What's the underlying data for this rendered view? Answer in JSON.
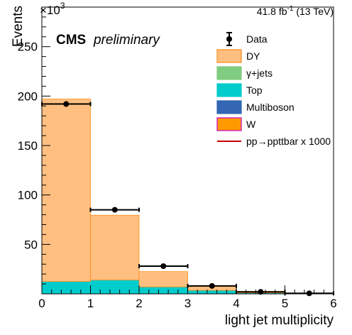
{
  "chart_data": {
    "type": "bar",
    "stacked": true,
    "title": "",
    "xlabel": "light jet multiplicity",
    "ylabel": "Events",
    "y_exponent_label": "×10",
    "y_exponent_power": "3",
    "luminosity_label": "41.8 fb",
    "luminosity_exp": "-1",
    "energy_label": " (13 TeV)",
    "cms_label": "CMS",
    "preliminary_label": "preliminary",
    "bin_edges": [
      0,
      1,
      2,
      3,
      4,
      5,
      6
    ],
    "x_ticks": [
      "0",
      "1",
      "2",
      "3",
      "4",
      "5",
      "6"
    ],
    "y_ticks": [
      50,
      100,
      150,
      200,
      250
    ],
    "y_tick_labels": [
      "50",
      "100",
      "150",
      "200",
      "250"
    ],
    "xlim": [
      0,
      6
    ],
    "ylim": [
      0,
      290
    ],
    "series": [
      {
        "name": "Top",
        "color": "#00cccc",
        "values": [
          12.5,
          14,
          7,
          3.5,
          1,
          0.3
        ]
      },
      {
        "name": "DY",
        "color": "#ffbf80",
        "values": [
          184.5,
          65.5,
          15.5,
          4.5,
          1.5,
          0.4
        ]
      }
    ],
    "data_points": {
      "name": "Data",
      "x": [
        0.5,
        1.5,
        2.5,
        3.5,
        4.5,
        5.5
      ],
      "y": [
        192,
        85,
        28,
        8,
        2,
        0.5
      ]
    },
    "legend": {
      "placement": "top-right",
      "entries": [
        {
          "label": "Data",
          "kind": "marker",
          "color": "#000000"
        },
        {
          "label": "DY",
          "kind": "box",
          "color": "#ffbf80",
          "edge": "#ff8c1a"
        },
        {
          "label": "γ+jets",
          "kind": "box",
          "color": "#80cc80",
          "edge": "#80cc80"
        },
        {
          "label": "Top",
          "kind": "box",
          "color": "#00cccc",
          "edge": "#00cccc"
        },
        {
          "label": "Multiboson",
          "kind": "box",
          "color": "#3366b3",
          "edge": "#3366b3"
        },
        {
          "label": "W",
          "kind": "box",
          "color": "#ff9900",
          "edge": "#cc00cc"
        },
        {
          "label": "pp→ppttbar x 1000",
          "kind": "line",
          "color": "#cc0000"
        }
      ]
    }
  }
}
